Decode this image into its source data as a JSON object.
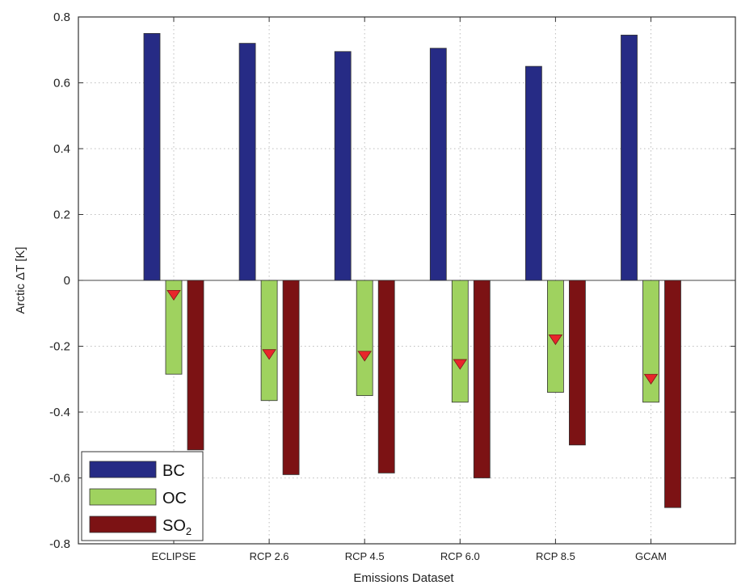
{
  "chart_data": {
    "type": "bar",
    "title": "",
    "xlabel": "Emissions Dataset",
    "ylabel": "Arctic ΔT [K]",
    "ylim": [
      -0.8,
      0.8
    ],
    "yticks": [
      "-0.8",
      "-0.6",
      "-0.4",
      "-0.2",
      "0",
      "0.2",
      "0.4",
      "0.6",
      "0.8"
    ],
    "categories": [
      "ECLIPSE",
      "RCP 2.6",
      "RCP 4.5",
      "RCP 6.0",
      "RCP 8.5",
      "GCAM"
    ],
    "series": [
      {
        "name": "BC",
        "color": "#262b85",
        "values": [
          0.75,
          0.72,
          0.695,
          0.705,
          0.65,
          0.745
        ]
      },
      {
        "name": "OC",
        "color": "#9fd25f",
        "values": [
          -0.285,
          -0.365,
          -0.35,
          -0.37,
          -0.34,
          -0.37
        ]
      },
      {
        "name": "SO",
        "name_sub": "2",
        "color": "#7c1214",
        "values": [
          -0.515,
          -0.59,
          -0.585,
          -0.6,
          -0.5,
          -0.69
        ]
      }
    ],
    "markers": {
      "series": "OC",
      "shape": "triangle-down",
      "color": "#e8262b",
      "values": [
        -0.045,
        -0.225,
        -0.23,
        -0.255,
        -0.18,
        -0.3
      ]
    },
    "grid": true,
    "legend_position": "bottom-left"
  }
}
